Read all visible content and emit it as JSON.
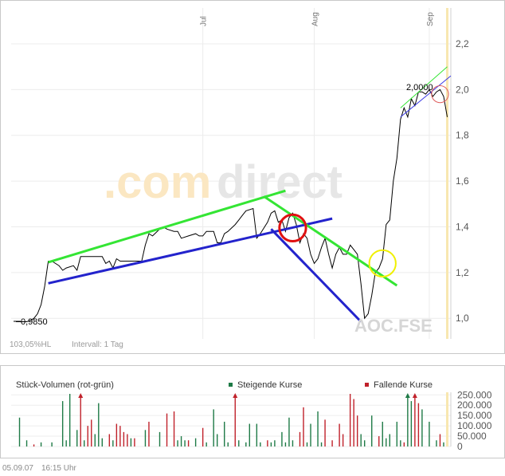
{
  "chart_data": [
    {
      "type": "line",
      "title": "",
      "watermark": {
        "prefix": ".com",
        "suffix": "direct"
      },
      "symbol": "AOC.FSE",
      "x_labels": [
        {
          "label": "Jul",
          "day": 52
        },
        {
          "label": "Aug",
          "day": 83
        },
        {
          "label": "Sep",
          "day": 115
        }
      ],
      "y_ticks": [
        "2,2",
        "2,0",
        "1,8",
        "1,6",
        "1,4",
        "1,2",
        "1,0"
      ],
      "y_tick_values": [
        2.2,
        2.0,
        1.8,
        1.6,
        1.4,
        1.2,
        1.0
      ],
      "ylim": [
        0.91,
        2.35
      ],
      "xlim": [
        0,
        121
      ],
      "grid": true,
      "min_label": "0,9850",
      "max_label": "2,0000",
      "bottom_info": {
        "change": "103,05%HL",
        "interval": "Intervall: 1 Tag"
      },
      "series": [
        {
          "points": [
            [
              0,
              0.985
            ],
            [
              3,
              0.985
            ],
            [
              4,
              0.99
            ],
            [
              5,
              1.0
            ],
            [
              6,
              1.02
            ],
            [
              7,
              1.06
            ],
            [
              8,
              1.14
            ],
            [
              9,
              1.25
            ],
            [
              10,
              1.25
            ],
            [
              12,
              1.23
            ],
            [
              13,
              1.21
            ],
            [
              14,
              1.22
            ],
            [
              16,
              1.23
            ],
            [
              17,
              1.21
            ],
            [
              18,
              1.27
            ],
            [
              20,
              1.27
            ],
            [
              22,
              1.27
            ],
            [
              24,
              1.27
            ],
            [
              25,
              1.24
            ],
            [
              26,
              1.25
            ],
            [
              27,
              1.22
            ],
            [
              28,
              1.26
            ],
            [
              29,
              1.25
            ],
            [
              31,
              1.25
            ],
            [
              33,
              1.25
            ],
            [
              35,
              1.25
            ],
            [
              36,
              1.32
            ],
            [
              37,
              1.37
            ],
            [
              38,
              1.36
            ],
            [
              40,
              1.39
            ],
            [
              41,
              1.4
            ],
            [
              42,
              1.39
            ],
            [
              44,
              1.38
            ],
            [
              45,
              1.38
            ],
            [
              46,
              1.35
            ],
            [
              48,
              1.36
            ],
            [
              50,
              1.37
            ],
            [
              51,
              1.36
            ],
            [
              52,
              1.36
            ],
            [
              53,
              1.38
            ],
            [
              55,
              1.38
            ],
            [
              56,
              1.33
            ],
            [
              57,
              1.33
            ],
            [
              58,
              1.37
            ],
            [
              59,
              1.38
            ],
            [
              61,
              1.41
            ],
            [
              62,
              1.43
            ],
            [
              63,
              1.45
            ],
            [
              64,
              1.47
            ],
            [
              66,
              1.48
            ],
            [
              67,
              1.35
            ],
            [
              68,
              1.37
            ],
            [
              70,
              1.42
            ],
            [
              71,
              1.46
            ],
            [
              72,
              1.47
            ],
            [
              73,
              1.42
            ],
            [
              74,
              1.43
            ],
            [
              75,
              1.38
            ],
            [
              76,
              1.44
            ],
            [
              77,
              1.46
            ],
            [
              78,
              1.41
            ],
            [
              79,
              1.33
            ],
            [
              80,
              1.37
            ],
            [
              81,
              1.35
            ],
            [
              82,
              1.28
            ],
            [
              83,
              1.24
            ],
            [
              84,
              1.26
            ],
            [
              85,
              1.31
            ],
            [
              86,
              1.35
            ],
            [
              87,
              1.28
            ],
            [
              88,
              1.22
            ],
            [
              89,
              1.28
            ],
            [
              90,
              1.31
            ],
            [
              91,
              1.28
            ],
            [
              92,
              1.28
            ],
            [
              93,
              1.32
            ],
            [
              94,
              1.3
            ],
            [
              95,
              1.28
            ],
            [
              96,
              1.15
            ],
            [
              97,
              1.0
            ],
            [
              98,
              1.02
            ],
            [
              99,
              1.1
            ],
            [
              100,
              1.2
            ],
            [
              101,
              1.22
            ],
            [
              102,
              1.26
            ],
            [
              103,
              1.41
            ],
            [
              104,
              1.43
            ],
            [
              105,
              1.6
            ],
            [
              106,
              1.7
            ],
            [
              107,
              1.87
            ],
            [
              108,
              1.92
            ],
            [
              109,
              1.88
            ],
            [
              110,
              1.96
            ],
            [
              111,
              1.93
            ],
            [
              112,
              1.99
            ],
            [
              113,
              1.99
            ],
            [
              114,
              1.98
            ],
            [
              115,
              2.0
            ],
            [
              116,
              1.97
            ],
            [
              117,
              1.99
            ],
            [
              118,
              2.0
            ],
            [
              119,
              1.97
            ],
            [
              120,
              1.88
            ]
          ]
        }
      ],
      "overlays": {
        "lines": [
          {
            "color": "#34e534",
            "width": 3,
            "from": [
              9,
              1.245
            ],
            "to": [
              75,
              1.558
            ]
          },
          {
            "color": "#2323cc",
            "width": 3,
            "from": [
              9,
              1.153
            ],
            "to": [
              88,
              1.436
            ]
          },
          {
            "color": "#34e534",
            "width": 3,
            "from": [
              69,
              1.533
            ],
            "to": [
              106,
              1.143
            ]
          },
          {
            "color": "#2323cc",
            "width": 3,
            "from": [
              71,
              1.39
            ],
            "to": [
              96,
              0.985
            ]
          },
          {
            "color": "#34e534",
            "width": 1,
            "from": [
              107,
              1.92
            ],
            "to": [
              120,
              2.1
            ]
          },
          {
            "color": "#3a3ae6",
            "width": 1,
            "from": [
              107,
              1.88
            ],
            "to": [
              121,
              2.06
            ]
          }
        ],
        "circles": [
          {
            "color": "#e01010",
            "width": 3,
            "center": [
              77,
              1.395
            ],
            "radius": 0.058
          },
          {
            "color": "#f0f000",
            "width": 2,
            "center": [
              102,
              1.24
            ],
            "radius": 0.058
          },
          {
            "color": "#e06060",
            "width": 1,
            "center": [
              118,
              1.98
            ],
            "radius": 0.037
          }
        ],
        "highlight_band": {
          "color": "#f8e7b0",
          "day": 120
        }
      }
    },
    {
      "type": "bar",
      "title": "Stück-Volumen (rot-grün)",
      "legend": [
        {
          "label": "Steigende Kurse",
          "color": "#1e7a46"
        },
        {
          "label": "Fallende Kurse",
          "color": "#c0212a"
        }
      ],
      "y_ticks": [
        "250.000",
        "200.000",
        "150.000",
        "100.000",
        "50.000",
        "0"
      ],
      "y_tick_values": [
        250000,
        200000,
        150000,
        100000,
        50000,
        0
      ],
      "ylim": [
        0,
        255000
      ],
      "xlim": [
        0,
        121
      ],
      "bars": [
        {
          "d": 1,
          "v": 140000,
          "c": "g"
        },
        {
          "d": 3,
          "v": 30000,
          "c": "g"
        },
        {
          "d": 5,
          "v": 10000,
          "c": "r"
        },
        {
          "d": 7,
          "v": 20000,
          "c": "g"
        },
        {
          "d": 10,
          "v": 20000,
          "c": "g"
        },
        {
          "d": 13,
          "v": 220000,
          "c": "g"
        },
        {
          "d": 14,
          "v": 30000,
          "c": "g"
        },
        {
          "d": 15,
          "v": 260000,
          "c": "g"
        },
        {
          "d": 17,
          "v": 80000,
          "c": "g"
        },
        {
          "d": 18,
          "v": 300000,
          "c": "r",
          "over": true
        },
        {
          "d": 19,
          "v": 30000,
          "c": "g"
        },
        {
          "d": 20,
          "v": 100000,
          "c": "r"
        },
        {
          "d": 21,
          "v": 130000,
          "c": "r"
        },
        {
          "d": 22,
          "v": 60000,
          "c": "g"
        },
        {
          "d": 23,
          "v": 210000,
          "c": "g"
        },
        {
          "d": 24,
          "v": 40000,
          "c": "g"
        },
        {
          "d": 26,
          "v": 60000,
          "c": "r"
        },
        {
          "d": 27,
          "v": 30000,
          "c": "g"
        },
        {
          "d": 28,
          "v": 110000,
          "c": "r"
        },
        {
          "d": 29,
          "v": 100000,
          "c": "r"
        },
        {
          "d": 30,
          "v": 70000,
          "c": "r"
        },
        {
          "d": 31,
          "v": 60000,
          "c": "r"
        },
        {
          "d": 32,
          "v": 40000,
          "c": "g"
        },
        {
          "d": 33,
          "v": 40000,
          "c": "r"
        },
        {
          "d": 36,
          "v": 80000,
          "c": "g"
        },
        {
          "d": 37,
          "v": 120000,
          "c": "r"
        },
        {
          "d": 40,
          "v": 70000,
          "c": "g"
        },
        {
          "d": 42,
          "v": 160000,
          "c": "r"
        },
        {
          "d": 44,
          "v": 170000,
          "c": "r"
        },
        {
          "d": 45,
          "v": 30000,
          "c": "g"
        },
        {
          "d": 46,
          "v": 50000,
          "c": "g"
        },
        {
          "d": 47,
          "v": 30000,
          "c": "g"
        },
        {
          "d": 48,
          "v": 30000,
          "c": "r"
        },
        {
          "d": 50,
          "v": 40000,
          "c": "g"
        },
        {
          "d": 52,
          "v": 90000,
          "c": "r"
        },
        {
          "d": 53,
          "v": 20000,
          "c": "g"
        },
        {
          "d": 55,
          "v": 180000,
          "c": "g"
        },
        {
          "d": 56,
          "v": 60000,
          "c": "g"
        },
        {
          "d": 58,
          "v": 120000,
          "c": "g"
        },
        {
          "d": 59,
          "v": 20000,
          "c": "g"
        },
        {
          "d": 61,
          "v": 300000,
          "c": "r",
          "over": true
        },
        {
          "d": 62,
          "v": 30000,
          "c": "g"
        },
        {
          "d": 64,
          "v": 20000,
          "c": "g"
        },
        {
          "d": 65,
          "v": 110000,
          "c": "g"
        },
        {
          "d": 67,
          "v": 110000,
          "c": "g"
        },
        {
          "d": 68,
          "v": 20000,
          "c": "g"
        },
        {
          "d": 70,
          "v": 30000,
          "c": "r"
        },
        {
          "d": 71,
          "v": 20000,
          "c": "g"
        },
        {
          "d": 72,
          "v": 30000,
          "c": "g"
        },
        {
          "d": 74,
          "v": 70000,
          "c": "g"
        },
        {
          "d": 75,
          "v": 20000,
          "c": "g"
        },
        {
          "d": 76,
          "v": 140000,
          "c": "g"
        },
        {
          "d": 77,
          "v": 30000,
          "c": "g"
        },
        {
          "d": 79,
          "v": 70000,
          "c": "r"
        },
        {
          "d": 80,
          "v": 190000,
          "c": "r"
        },
        {
          "d": 81,
          "v": 20000,
          "c": "g"
        },
        {
          "d": 82,
          "v": 110000,
          "c": "g"
        },
        {
          "d": 84,
          "v": 170000,
          "c": "g"
        },
        {
          "d": 85,
          "v": 20000,
          "c": "g"
        },
        {
          "d": 86,
          "v": 130000,
          "c": "r"
        },
        {
          "d": 88,
          "v": 30000,
          "c": "r"
        },
        {
          "d": 90,
          "v": 110000,
          "c": "r"
        },
        {
          "d": 91,
          "v": 60000,
          "c": "r"
        },
        {
          "d": 93,
          "v": 280000,
          "c": "r"
        },
        {
          "d": 94,
          "v": 230000,
          "c": "r"
        },
        {
          "d": 95,
          "v": 150000,
          "c": "r"
        },
        {
          "d": 96,
          "v": 60000,
          "c": "g"
        },
        {
          "d": 97,
          "v": 30000,
          "c": "g"
        },
        {
          "d": 99,
          "v": 150000,
          "c": "g"
        },
        {
          "d": 101,
          "v": 50000,
          "c": "r"
        },
        {
          "d": 102,
          "v": 120000,
          "c": "g"
        },
        {
          "d": 103,
          "v": 40000,
          "c": "g"
        },
        {
          "d": 104,
          "v": 60000,
          "c": "g"
        },
        {
          "d": 106,
          "v": 120000,
          "c": "g"
        },
        {
          "d": 107,
          "v": 30000,
          "c": "g"
        },
        {
          "d": 108,
          "v": 20000,
          "c": "r"
        },
        {
          "d": 109,
          "v": 300000,
          "c": "g",
          "over": true
        },
        {
          "d": 110,
          "v": 220000,
          "c": "g"
        },
        {
          "d": 111,
          "v": 300000,
          "c": "r",
          "over": true
        },
        {
          "d": 112,
          "v": 210000,
          "c": "r"
        },
        {
          "d": 113,
          "v": 180000,
          "c": "g"
        },
        {
          "d": 115,
          "v": 120000,
          "c": "g"
        },
        {
          "d": 117,
          "v": 30000,
          "c": "g"
        },
        {
          "d": 118,
          "v": 60000,
          "c": "r"
        },
        {
          "d": 119,
          "v": 20000,
          "c": "g"
        }
      ]
    }
  ],
  "footer": {
    "date": "05.09.07",
    "time": "16:15 Uhr"
  }
}
